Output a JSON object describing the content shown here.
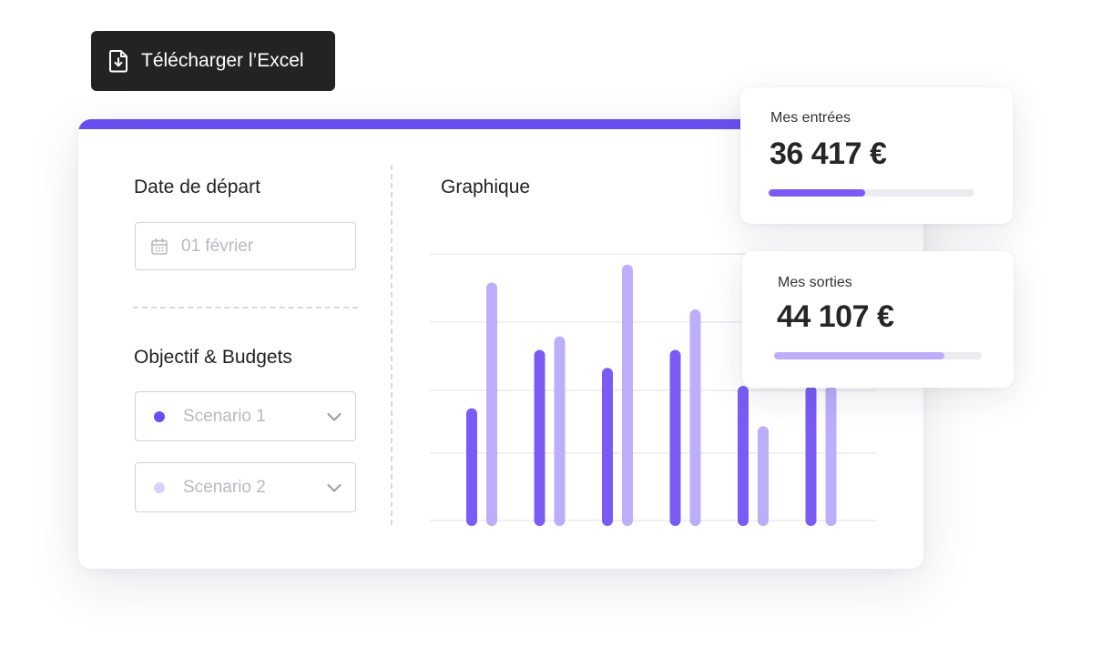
{
  "download_button": {
    "label": "Télécharger l’Excel",
    "icon": "file-download-icon"
  },
  "main_card": {
    "accent_color": "#6a4ff0",
    "date_section": {
      "title": "Date de départ",
      "field": {
        "value": "01 février",
        "icon": "calendar-icon"
      }
    },
    "budget_section": {
      "title": "Objectif & Budgets",
      "scenarios": [
        {
          "label": "Scenario 1",
          "dot_color": "#6a4ff0",
          "icon": "chevron-down-icon"
        },
        {
          "label": "Scenario 2",
          "dot_color": "#d9d2fb",
          "icon": "chevron-down-icon"
        }
      ]
    },
    "chart_title": "Graphique"
  },
  "chart_data": {
    "type": "bar",
    "title": "Graphique",
    "xlabel": "",
    "ylabel": "",
    "ylim": [
      0,
      300
    ],
    "grid": true,
    "categories": [
      "",
      "",
      "",
      "",
      "",
      ""
    ],
    "series": [
      {
        "values": [
          125,
          190,
          170,
          190,
          150,
          150
        ],
        "color": "#7a5cf5"
      },
      {
        "values": [
          265,
          205,
          285,
          235,
          105,
          150
        ],
        "color": "#bcaefb"
      }
    ]
  },
  "stats": {
    "entrees": {
      "label": "Mes entrées",
      "value": "36 417 €",
      "progress": 0.47,
      "color": "#7a5cf5"
    },
    "sorties": {
      "label": "Mes sorties",
      "value": "44 107 €",
      "progress": 0.82,
      "color": "#bcaefb"
    }
  }
}
